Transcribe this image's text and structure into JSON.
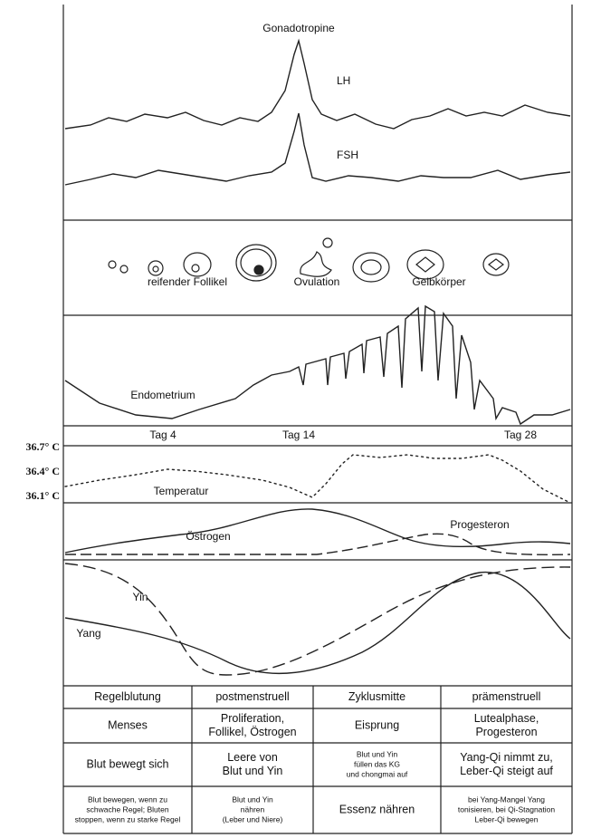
{
  "hormones": {
    "title": "Gonadotropine",
    "lh": "LH",
    "fsh": "FSH"
  },
  "follicles": {
    "maturing": "reifender Follikel",
    "ovulation": "Ovulation",
    "corpus_luteum": "Gelbkörper"
  },
  "endometrium": {
    "label": "Endometrium"
  },
  "days": [
    "Tag 4",
    "Tag 14",
    "Tag 28"
  ],
  "temperature": {
    "label": "Temperatur",
    "scale": [
      "36.7° C",
      "36.4° C",
      "36.1° C"
    ]
  },
  "sex_hormones": {
    "estrogen": "Östrogen",
    "progesterone": "Progesteron"
  },
  "yin_yang": {
    "yin": "Yin",
    "yang": "Yang"
  },
  "table": {
    "rows": [
      [
        [
          "Regelblutung"
        ],
        [
          "postmenstruell"
        ],
        [
          "Zyklusmitte"
        ],
        [
          "prämenstruell"
        ]
      ],
      [
        [
          "Menses"
        ],
        [
          "Proliferation,",
          "Follikel, Östrogen"
        ],
        [
          "Eisprung"
        ],
        [
          "Lutealphase,",
          "Progesteron"
        ]
      ],
      [
        [
          "Blut bewegt sich"
        ],
        [
          "Leere von",
          "Blut und Yin"
        ],
        [
          "Blut und Yin",
          "füllen das KG",
          "und chongmai auf"
        ],
        [
          "Yang-Qi nimmt zu,",
          "Leber-Qi steigt auf"
        ]
      ],
      [
        [
          "Blut bewegen, wenn zu",
          "schwache Regel; Bluten",
          "stoppen, wenn zu starke Regel"
        ],
        [
          "Blut und Yin",
          "nähren",
          "(Leber und Niere)"
        ],
        [
          "Essenz nähren"
        ],
        [
          "bei Yang-Mangel Yang",
          "tonisieren, bei Qi-Stagnation",
          "Leber-Qi bewegen"
        ]
      ]
    ]
  }
}
